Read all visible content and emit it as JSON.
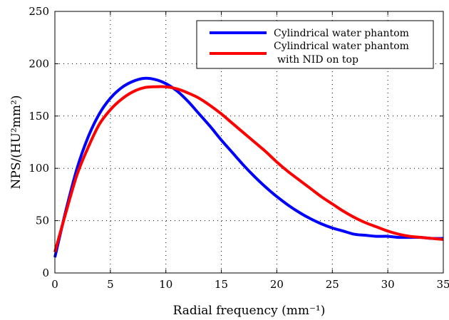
{
  "chart_data": {
    "type": "line",
    "xlabel": "Radial frequency (mm⁻¹)",
    "ylabel": "NPS/(HU²mm²)",
    "xlim": [
      0,
      35
    ],
    "ylim": [
      0,
      250
    ],
    "xticks": [
      0,
      5,
      10,
      15,
      20,
      25,
      30,
      35
    ],
    "yticks": [
      0,
      50,
      100,
      150,
      200,
      250
    ],
    "grid": true,
    "legend_position": "top-right",
    "series": [
      {
        "name": "Cylindrical water phantom",
        "color": "#0000ff",
        "x": [
          0,
          1,
          2,
          3,
          4,
          5,
          6,
          7,
          8,
          9,
          10,
          11,
          12,
          13,
          14,
          15,
          16,
          17,
          18,
          19,
          20,
          21,
          22,
          23,
          24,
          25,
          26,
          27,
          28,
          29,
          30,
          31,
          32,
          33,
          34,
          35
        ],
        "y": [
          15,
          60,
          100,
          130,
          152,
          167,
          177,
          183,
          186,
          185,
          181,
          174,
          164,
          152,
          140,
          127,
          115,
          103,
          92,
          82,
          73,
          65,
          58,
          52,
          47,
          43,
          40,
          37,
          36,
          35,
          35,
          34,
          34,
          34,
          33,
          33
        ]
      },
      {
        "name": "Cylindrical water phantom\nwith NID on top",
        "color": "#ff0000",
        "x": [
          0,
          1,
          2,
          3,
          4,
          5,
          6,
          7,
          8,
          9,
          10,
          11,
          12,
          13,
          14,
          15,
          16,
          17,
          18,
          19,
          20,
          21,
          22,
          23,
          24,
          25,
          26,
          27,
          28,
          29,
          30,
          31,
          32,
          33,
          34,
          35
        ],
        "y": [
          20,
          58,
          94,
          120,
          142,
          156,
          166,
          173,
          177,
          178,
          178,
          176,
          172,
          167,
          160,
          152,
          143,
          134,
          125,
          116,
          106,
          97,
          89,
          81,
          73,
          66,
          59,
          53,
          48,
          44,
          40,
          37,
          35,
          34,
          33,
          32
        ]
      }
    ]
  }
}
